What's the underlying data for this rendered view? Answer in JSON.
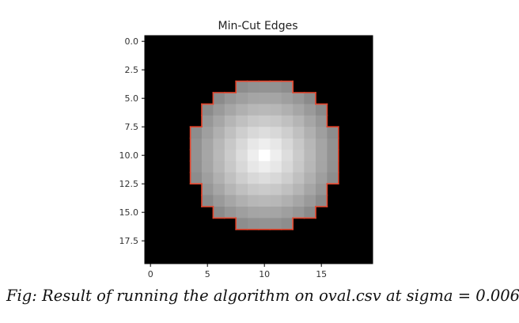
{
  "chart_data": {
    "type": "heatmap",
    "title": "Min-Cut Edges",
    "xlabel": "",
    "ylabel": "",
    "grid_size": [
      20,
      20
    ],
    "xlim": [
      -0.5,
      19.5
    ],
    "ylim": [
      19.5,
      -0.5
    ],
    "x_ticks": [
      0,
      5,
      10,
      15
    ],
    "x_tick_labels": [
      "0",
      "5",
      "10",
      "15"
    ],
    "y_ticks": [
      0,
      2.5,
      5,
      7.5,
      10,
      12.5,
      15,
      17.5
    ],
    "y_tick_labels": [
      "0.0",
      "2.5",
      "5.0",
      "7.5",
      "10.0",
      "12.5",
      "15.0",
      "17.5"
    ],
    "colormap": "gray",
    "oval_center": [
      10,
      10
    ],
    "oval_radius": 6.5,
    "value_range": [
      0,
      1
    ],
    "background_value": 0,
    "cut_edge_color": "#e8452c",
    "background_color": "#000000"
  },
  "caption": "Fig: Result of running the algorithm on oval.csv at sigma = 0.006"
}
